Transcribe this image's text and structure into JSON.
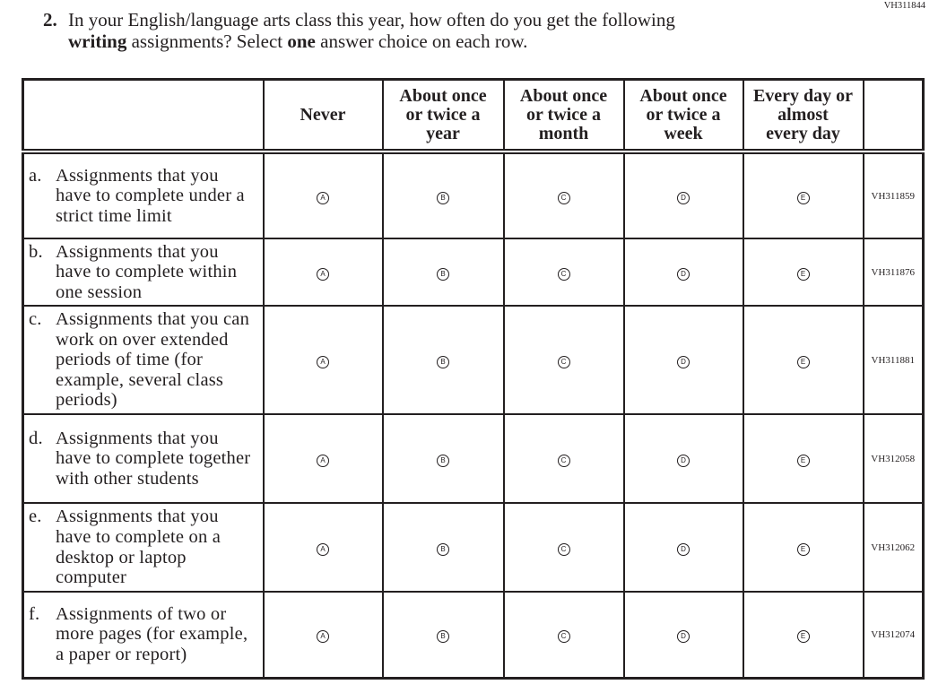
{
  "question_id": "VH311844",
  "question": {
    "number": "2.",
    "line1": "In your English/language arts class this year, how often do you get the following",
    "bold1": "writing",
    "mid": " assignments? Select ",
    "bold2": "one",
    "end": " answer choice on each row."
  },
  "columns": [
    {
      "l1": "Never",
      "l2": "",
      "l3": ""
    },
    {
      "l1": "About once",
      "l2": "or twice a",
      "l3": "year"
    },
    {
      "l1": "About once",
      "l2": "or twice a",
      "l3": "month"
    },
    {
      "l1": "About once",
      "l2": "or twice a",
      "l3": "week"
    },
    {
      "l1": "Every day or",
      "l2": "almost",
      "l3": "every day"
    }
  ],
  "options": [
    "A",
    "B",
    "C",
    "D",
    "E"
  ],
  "rows": [
    {
      "label": "a.",
      "text": "Assignments that you have to complete under a strict time limit",
      "code": "VH311859"
    },
    {
      "label": "b.",
      "text": "Assignments that you have to complete within one session",
      "code": "VH311876"
    },
    {
      "label": "c.",
      "text": "Assignments that you can work on over extended periods of time (for example, several class periods)",
      "code": "VH311881"
    },
    {
      "label": "d.",
      "text": "Assignments that you have to complete together with other students",
      "code": "VH312058"
    },
    {
      "label": "e.",
      "text": "Assignments that you have to complete on a desktop or laptop computer",
      "code": "VH312062"
    },
    {
      "label": "f.",
      "text": "Assignments of two or more pages (for example, a paper or report)",
      "code": "VH312074"
    }
  ]
}
